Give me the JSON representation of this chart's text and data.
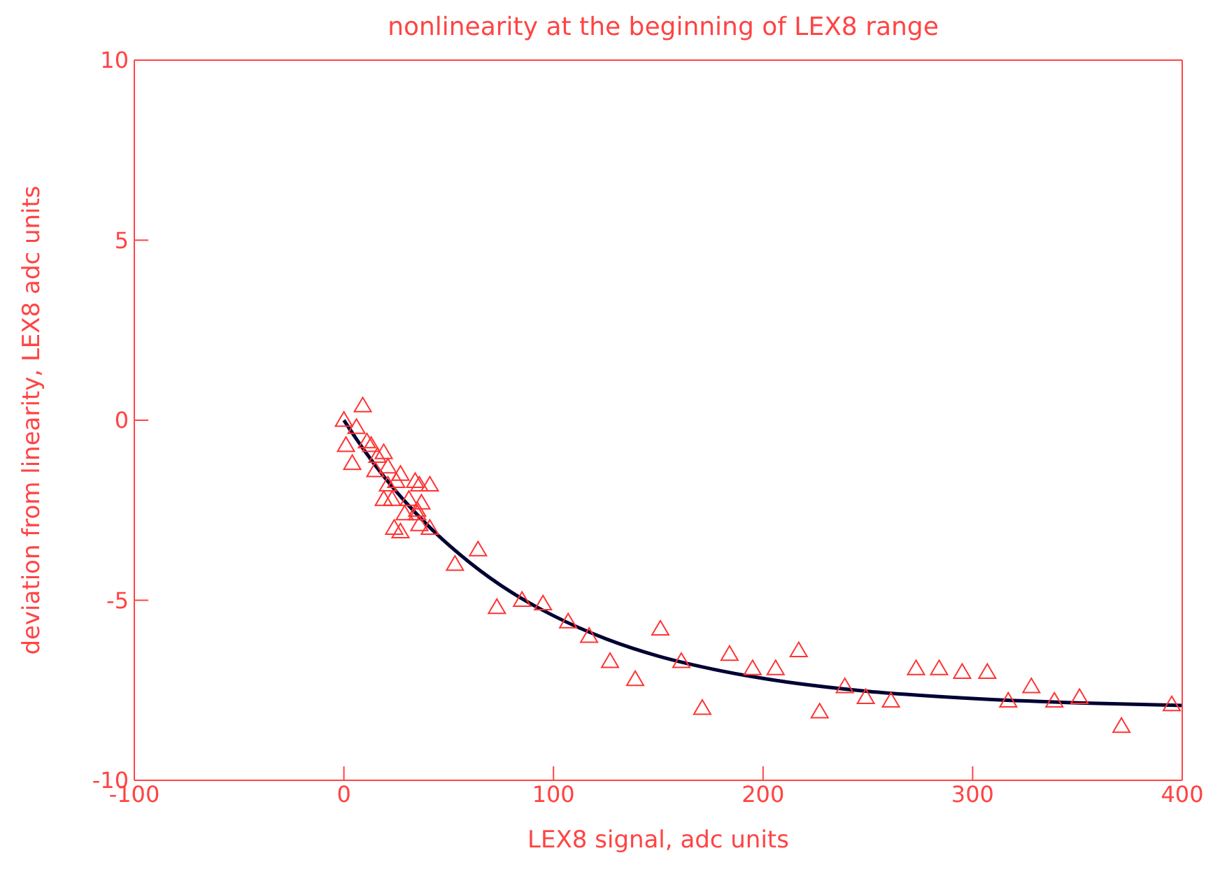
{
  "chart_data": {
    "type": "scatter",
    "title": "nonlinearity at the beginning of LEX8 range",
    "xlabel": "LEX8 signal, adc units",
    "ylabel": "deviation from linearity, LEX8 adc units",
    "xlim": [
      -100,
      400
    ],
    "xticks": [
      -100,
      0,
      100,
      200,
      300,
      400
    ],
    "ylim": [
      -10,
      10
    ],
    "yticks": [
      -10,
      -5,
      0,
      5,
      10
    ],
    "series": [
      {
        "marker": "triangle",
        "color": "#ff3333",
        "x": [
          0,
          1,
          4,
          9,
          6,
          11,
          13,
          16,
          19,
          21,
          15,
          19,
          23,
          21,
          25,
          24,
          27,
          29,
          27,
          31,
          34,
          35,
          37,
          36,
          41,
          36,
          41,
          35,
          53,
          64,
          73,
          85,
          95,
          107,
          117,
          127,
          139,
          151,
          161,
          171,
          184,
          195,
          206,
          217,
          227,
          239,
          249,
          261,
          273,
          284,
          295,
          307,
          317,
          328,
          339,
          351,
          371,
          395
        ],
        "values": [
          0,
          -0.7,
          -1.2,
          0.4,
          -0.2,
          -0.6,
          -0.7,
          -1.0,
          -0.9,
          -1.3,
          -1.4,
          -2.2,
          -2.2,
          -1.8,
          -1.7,
          -3.0,
          -1.5,
          -2.6,
          -3.1,
          -2.2,
          -1.7,
          -2.5,
          -2.3,
          -1.8,
          -1.8,
          -2.9,
          -3.0,
          -2.6,
          -4.0,
          -3.6,
          -5.2,
          -5.0,
          -5.1,
          -5.6,
          -6.0,
          -6.7,
          -7.2,
          -5.8,
          -6.7,
          -8.0,
          -6.5,
          -6.9,
          -6.9,
          -6.4,
          -8.1,
          -7.4,
          -7.7,
          -7.8,
          -6.9,
          -6.9,
          -7.0,
          -7.0,
          -7.8,
          -7.4,
          -7.8,
          -7.7,
          -8.5,
          -7.9
        ]
      },
      {
        "type": "line",
        "marker": "none",
        "line_style": "solid",
        "color": "#000033",
        "x": [
          0,
          10,
          20,
          30,
          40,
          60,
          80,
          100,
          125,
          150,
          175,
          200,
          250,
          300,
          350,
          400
        ],
        "values": [
          0,
          -0.86,
          -1.63,
          -2.31,
          -2.92,
          -3.95,
          -4.78,
          -5.43,
          -6.07,
          -6.55,
          -6.9,
          -7.17,
          -7.53,
          -7.73,
          -7.85,
          -7.92
        ]
      }
    ]
  }
}
